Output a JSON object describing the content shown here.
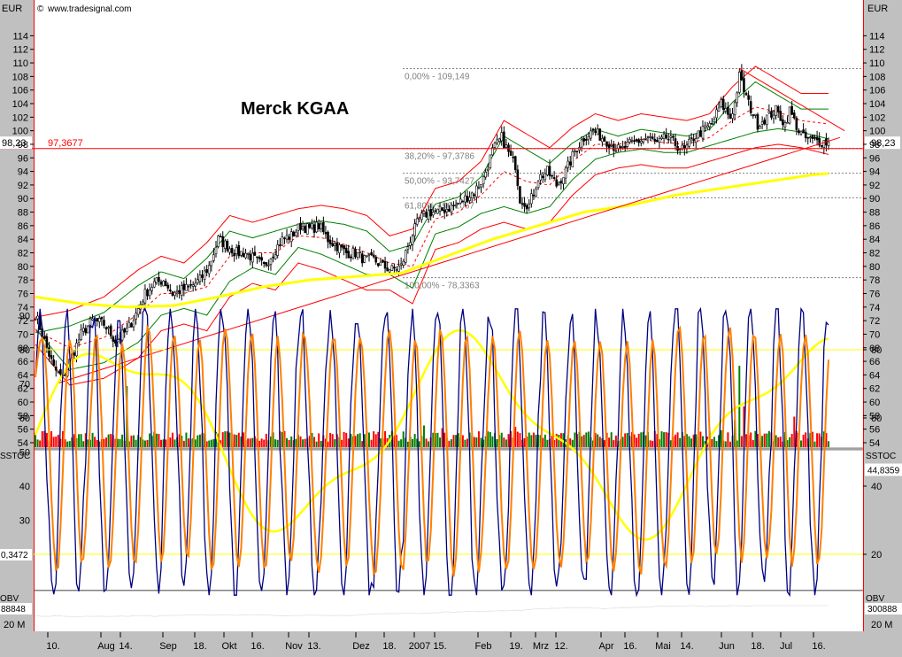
{
  "header": {
    "currency_left": "EUR",
    "currency_right": "EUR",
    "source": "www.tradesignal.com",
    "copyright": "©"
  },
  "colors": {
    "background": "#c0c0c0",
    "plot": "#ffffff",
    "price": "#000000",
    "bands_outer": "#ff0000",
    "bands_inner": "#008000",
    "ma200": "#ffff00",
    "trend": "#ff0000",
    "stoch_fast": "#000080",
    "stoch_slow": "#ff8000",
    "stoch_signal": "#ffff00",
    "volume_up": "#008000",
    "volume_down": "#ff0000",
    "obv": "#ffffff"
  },
  "chart_data": [
    {
      "type": "line",
      "title": "Merck KGAA",
      "ylabel": "EUR",
      "ylim": [
        53,
        116
      ],
      "yticks": [
        54,
        56,
        58,
        60,
        62,
        64,
        66,
        68,
        70,
        72,
        74,
        76,
        78,
        80,
        82,
        84,
        86,
        88,
        90,
        92,
        94,
        96,
        98,
        100,
        102,
        104,
        106,
        108,
        110,
        112,
        114
      ],
      "x_labels": [
        "10.",
        "Aug",
        "14.",
        "Sep",
        "18.",
        "Okt",
        "16.",
        "Nov",
        "13.",
        "Dez",
        "18.",
        "2007",
        "15.",
        "Feb",
        "19.",
        "Mrz",
        "12.",
        "Apr",
        "16.",
        "Mai",
        "14.",
        "Jun",
        "18.",
        "Jul",
        "16."
      ],
      "last_price_label": "98,23",
      "horizontal_line": {
        "value": 97.3677,
        "label": "97,3677"
      },
      "fibonacci": [
        {
          "label": "0,00% - 109,149",
          "value": 109.149
        },
        {
          "label": "38,20% - 97,3786",
          "value": 97.3786
        },
        {
          "label": "50,00% - 93,7427",
          "value": 93.7427
        },
        {
          "label": "61,80% - 90,1067",
          "value": 90.1067
        },
        {
          "label": "100,00% - 78,3363",
          "value": 78.3363
        }
      ],
      "close_anchors": [
        [
          0,
          73
        ],
        [
          4,
          69
        ],
        [
          8,
          65
        ],
        [
          12,
          63.5
        ],
        [
          15,
          66
        ],
        [
          20,
          70
        ],
        [
          25,
          72
        ],
        [
          30,
          71.5
        ],
        [
          35,
          69
        ],
        [
          40,
          70.5
        ],
        [
          44,
          73
        ],
        [
          48,
          76
        ],
        [
          52,
          77.5
        ],
        [
          56,
          78
        ],
        [
          60,
          76
        ],
        [
          64,
          76.5
        ],
        [
          68,
          77
        ],
        [
          72,
          78
        ],
        [
          76,
          80
        ],
        [
          80,
          84
        ],
        [
          84,
          83
        ],
        [
          88,
          82
        ],
        [
          92,
          82
        ],
        [
          96,
          81
        ],
        [
          100,
          80
        ],
        [
          104,
          82
        ],
        [
          108,
          84
        ],
        [
          112,
          84.5
        ],
        [
          116,
          86
        ],
        [
          120,
          85.5
        ],
        [
          124,
          86
        ],
        [
          128,
          84
        ],
        [
          132,
          83
        ],
        [
          136,
          82
        ],
        [
          140,
          82
        ],
        [
          144,
          81
        ],
        [
          148,
          81
        ],
        [
          152,
          80
        ],
        [
          156,
          79.5
        ],
        [
          160,
          80
        ],
        [
          164,
          84
        ],
        [
          168,
          87
        ],
        [
          172,
          88
        ],
        [
          176,
          88
        ],
        [
          180,
          88.5
        ],
        [
          184,
          89
        ],
        [
          188,
          90
        ],
        [
          192,
          91
        ],
        [
          196,
          93
        ],
        [
          200,
          97
        ],
        [
          204,
          99
        ],
        [
          208,
          96
        ],
        [
          210,
          95
        ],
        [
          212,
          90
        ],
        [
          216,
          89
        ],
        [
          220,
          93
        ],
        [
          224,
          94
        ],
        [
          228,
          92
        ],
        [
          232,
          94
        ],
        [
          236,
          97
        ],
        [
          240,
          99
        ],
        [
          244,
          100
        ],
        [
          248,
          99
        ],
        [
          252,
          98
        ],
        [
          256,
          97
        ],
        [
          260,
          98
        ],
        [
          264,
          98.5
        ],
        [
          268,
          99
        ],
        [
          272,
          98
        ],
        [
          276,
          99
        ],
        [
          280,
          98
        ],
        [
          284,
          97
        ],
        [
          288,
          99
        ],
        [
          292,
          100
        ],
        [
          296,
          101
        ],
        [
          300,
          104
        ],
        [
          304,
          102
        ],
        [
          306,
          104
        ],
        [
          308,
          108
        ],
        [
          312,
          104
        ],
        [
          316,
          101
        ],
        [
          320,
          102
        ],
        [
          324,
          103
        ],
        [
          328,
          101
        ],
        [
          330,
          103
        ],
        [
          334,
          100
        ],
        [
          336,
          99
        ],
        [
          340,
          98.5
        ],
        [
          344,
          98.5
        ],
        [
          347,
          98.23
        ]
      ],
      "trend_lines": [
        {
          "from": [
            10,
            62.8
          ],
          "to": [
            352,
            99
          ]
        },
        {
          "from": [
            308,
            109.2
          ],
          "to": [
            354,
            100
          ]
        }
      ],
      "ma200": {
        "name": "",
        "values": [
          [
            0,
            75.5
          ],
          [
            10,
            75
          ],
          [
            20,
            74.5
          ],
          [
            40,
            74
          ],
          [
            60,
            74.2
          ],
          [
            80,
            75.5
          ],
          [
            100,
            77
          ],
          [
            120,
            78
          ],
          [
            140,
            78.5
          ],
          [
            160,
            79
          ],
          [
            180,
            81.5
          ],
          [
            200,
            84
          ],
          [
            220,
            86
          ],
          [
            240,
            88
          ],
          [
            260,
            89
          ],
          [
            280,
            90.5
          ],
          [
            300,
            91.5
          ],
          [
            320,
            92.5
          ],
          [
            340,
            93.5
          ],
          [
            347,
            93.7
          ]
        ]
      },
      "bands_upper_anchors": [
        [
          0,
          71
        ],
        [
          15,
          72
        ],
        [
          30,
          74
        ],
        [
          45,
          78
        ],
        [
          55,
          80
        ],
        [
          65,
          79
        ],
        [
          75,
          82
        ],
        [
          85,
          86
        ],
        [
          95,
          85
        ],
        [
          105,
          86
        ],
        [
          115,
          87
        ],
        [
          125,
          87.5
        ],
        [
          135,
          87
        ],
        [
          145,
          86
        ],
        [
          155,
          83
        ],
        [
          165,
          84
        ],
        [
          175,
          90
        ],
        [
          185,
          91
        ],
        [
          195,
          94
        ],
        [
          205,
          100
        ],
        [
          215,
          98
        ],
        [
          225,
          96
        ],
        [
          235,
          99
        ],
        [
          245,
          101
        ],
        [
          255,
          100
        ],
        [
          265,
          101
        ],
        [
          275,
          100.5
        ],
        [
          285,
          100
        ],
        [
          295,
          101
        ],
        [
          305,
          105
        ],
        [
          315,
          108
        ],
        [
          325,
          106
        ],
        [
          335,
          104
        ],
        [
          347,
          104
        ]
      ],
      "bands_lower_anchors": [
        [
          0,
          70
        ],
        [
          15,
          64
        ],
        [
          30,
          65
        ],
        [
          45,
          68
        ],
        [
          55,
          72
        ],
        [
          65,
          73
        ],
        [
          75,
          72
        ],
        [
          85,
          77
        ],
        [
          95,
          79
        ],
        [
          105,
          78
        ],
        [
          115,
          82
        ],
        [
          125,
          81
        ],
        [
          135,
          79.5
        ],
        [
          145,
          78
        ],
        [
          155,
          78
        ],
        [
          165,
          76
        ],
        [
          175,
          84
        ],
        [
          185,
          85
        ],
        [
          195,
          87
        ],
        [
          205,
          88
        ],
        [
          215,
          87
        ],
        [
          225,
          88
        ],
        [
          235,
          92
        ],
        [
          245,
          95
        ],
        [
          255,
          96
        ],
        [
          265,
          96.5
        ],
        [
          275,
          96
        ],
        [
          285,
          96
        ],
        [
          295,
          97
        ],
        [
          305,
          98
        ],
        [
          315,
          99
        ],
        [
          325,
          99.5
        ],
        [
          335,
          99
        ],
        [
          347,
          98
        ]
      ],
      "volume_note": "per-bar volume heights generated"
    },
    {
      "type": "line",
      "title": "SSTOC",
      "ylim": [
        0,
        100
      ],
      "yticks_left": [
        20,
        30,
        40,
        50,
        60,
        70,
        80,
        90
      ],
      "yticks_right": [
        20,
        40,
        60,
        80
      ],
      "levels": [
        20,
        80
      ],
      "value_label_right": "44,8359",
      "value_label_left": "0,3472"
    },
    {
      "type": "line",
      "title": "OBV",
      "value_label_left": "88848",
      "value_label_right": "300888",
      "scale_label": "20 M"
    }
  ]
}
